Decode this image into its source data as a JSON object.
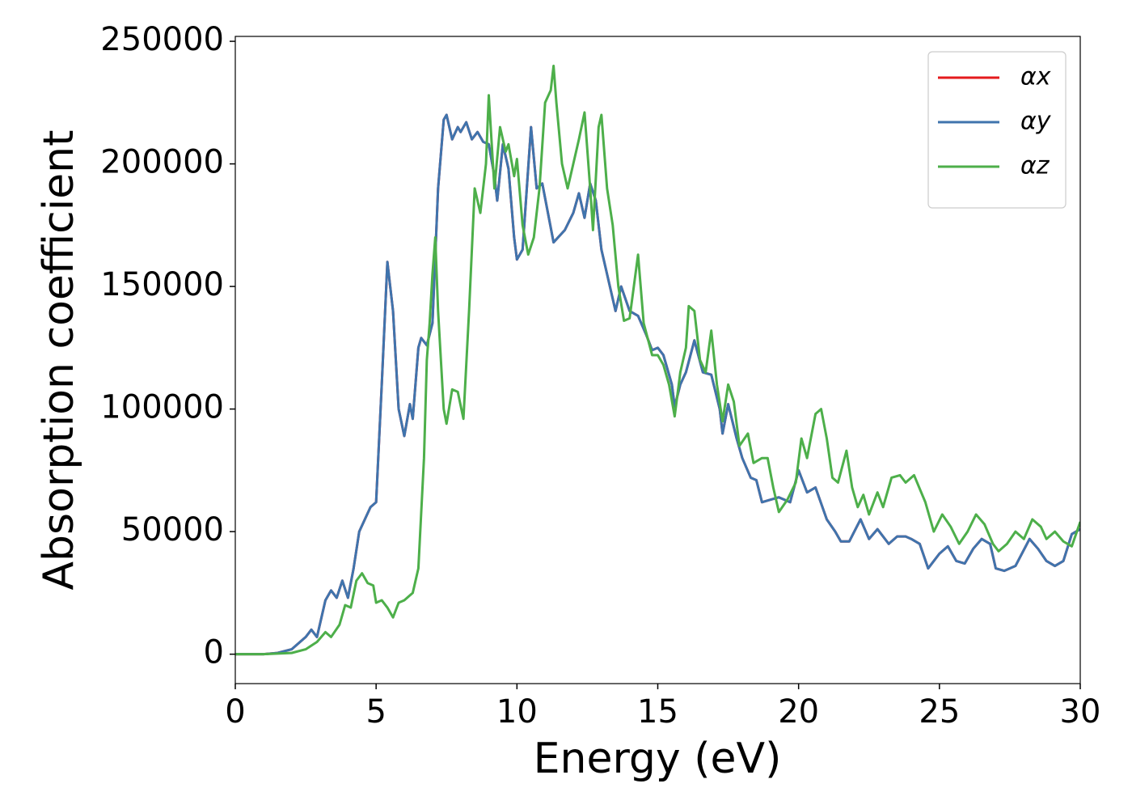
{
  "chart_data": {
    "type": "line",
    "xlabel": "Energy (eV)",
    "ylabel": "Absorption coefficient",
    "xlim": [
      0,
      30
    ],
    "ylim": [
      -12000,
      252000
    ],
    "xticks": [
      0,
      5,
      10,
      15,
      20,
      25,
      30
    ],
    "yticks": [
      0,
      50000,
      100000,
      150000,
      200000,
      250000
    ],
    "grid": false,
    "legend": "upper right",
    "series": [
      {
        "name": "αx",
        "color": "#e41a1c",
        "x": [
          0,
          1,
          1.5,
          2,
          2.5,
          2.7,
          2.9,
          3.2,
          3.4,
          3.6,
          3.8,
          4.0,
          4.2,
          4.4,
          4.8,
          5.0,
          5.2,
          5.4,
          5.6,
          5.8,
          6.0,
          6.2,
          6.3,
          6.5,
          6.6,
          6.8,
          7.0,
          7.2,
          7.4,
          7.5,
          7.7,
          7.9,
          8.0,
          8.2,
          8.4,
          8.6,
          8.8,
          9.0,
          9.2,
          9.3,
          9.5,
          9.7,
          9.9,
          10.0,
          10.2,
          10.5,
          10.7,
          10.9,
          11.1,
          11.3,
          11.7,
          12.0,
          12.2,
          12.4,
          12.6,
          12.8,
          13.0,
          13.2,
          13.5,
          13.7,
          14.0,
          14.3,
          14.6,
          14.8,
          15.0,
          15.2,
          15.5,
          15.6,
          15.8,
          16.0,
          16.3,
          16.6,
          16.9,
          17.2,
          17.3,
          17.5,
          17.8,
          18.0,
          18.3,
          18.5,
          18.7,
          19.0,
          19.3,
          19.7,
          20.0,
          20.3,
          20.6,
          21.0,
          21.3,
          21.5,
          21.8,
          22.2,
          22.5,
          22.8,
          23.2,
          23.5,
          23.8,
          24.0,
          24.3,
          24.6,
          25.0,
          25.3,
          25.6,
          25.9,
          26.2,
          26.5,
          26.8,
          27.0,
          27.3,
          27.7,
          28.2,
          28.5,
          28.8,
          29.1,
          29.4,
          29.7,
          30
        ],
        "values": [
          0,
          0,
          500,
          2000,
          7000,
          10000,
          7000,
          22000,
          26000,
          23000,
          30000,
          23000,
          35000,
          50000,
          60000,
          62000,
          110000,
          160000,
          140000,
          100000,
          89000,
          102000,
          96000,
          125000,
          129000,
          126000,
          135000,
          190000,
          218000,
          220000,
          210000,
          215000,
          213000,
          217000,
          210000,
          213000,
          209000,
          208000,
          195000,
          185000,
          208000,
          198000,
          170000,
          161000,
          165000,
          215000,
          190000,
          192000,
          180000,
          168000,
          173000,
          180000,
          188000,
          178000,
          192000,
          185000,
          165000,
          155000,
          140000,
          150000,
          140000,
          138000,
          130000,
          124000,
          125000,
          122000,
          110000,
          101000,
          110000,
          115000,
          128000,
          115000,
          114000,
          100000,
          90000,
          102000,
          88000,
          80000,
          72000,
          71000,
          62000,
          63000,
          64000,
          62000,
          75000,
          66000,
          68000,
          55000,
          50000,
          46000,
          46000,
          55000,
          47000,
          51000,
          45000,
          48000,
          48000,
          47000,
          45000,
          35000,
          41000,
          44000,
          38000,
          37000,
          43000,
          47000,
          45000,
          35000,
          34000,
          36000,
          47000,
          43000,
          38000,
          36000,
          38000,
          49000,
          51000
        ]
      },
      {
        "name": "αy",
        "color": "#3f74ad",
        "x": [
          0,
          1,
          1.5,
          2,
          2.5,
          2.7,
          2.9,
          3.2,
          3.4,
          3.6,
          3.8,
          4.0,
          4.2,
          4.4,
          4.8,
          5.0,
          5.2,
          5.4,
          5.6,
          5.8,
          6.0,
          6.2,
          6.3,
          6.5,
          6.6,
          6.8,
          7.0,
          7.2,
          7.4,
          7.5,
          7.7,
          7.9,
          8.0,
          8.2,
          8.4,
          8.6,
          8.8,
          9.0,
          9.2,
          9.3,
          9.5,
          9.7,
          9.9,
          10.0,
          10.2,
          10.5,
          10.7,
          10.9,
          11.1,
          11.3,
          11.7,
          12.0,
          12.2,
          12.4,
          12.6,
          12.8,
          13.0,
          13.2,
          13.5,
          13.7,
          14.0,
          14.3,
          14.6,
          14.8,
          15.0,
          15.2,
          15.5,
          15.6,
          15.8,
          16.0,
          16.3,
          16.6,
          16.9,
          17.2,
          17.3,
          17.5,
          17.8,
          18.0,
          18.3,
          18.5,
          18.7,
          19.0,
          19.3,
          19.7,
          20.0,
          20.3,
          20.6,
          21.0,
          21.3,
          21.5,
          21.8,
          22.2,
          22.5,
          22.8,
          23.2,
          23.5,
          23.8,
          24.0,
          24.3,
          24.6,
          25.0,
          25.3,
          25.6,
          25.9,
          26.2,
          26.5,
          26.8,
          27.0,
          27.3,
          27.7,
          28.2,
          28.5,
          28.8,
          29.1,
          29.4,
          29.7,
          30
        ],
        "values": [
          0,
          0,
          500,
          2000,
          7000,
          10000,
          7000,
          22000,
          26000,
          23000,
          30000,
          23000,
          35000,
          50000,
          60000,
          62000,
          110000,
          160000,
          140000,
          100000,
          89000,
          102000,
          96000,
          125000,
          129000,
          126000,
          135000,
          190000,
          218000,
          220000,
          210000,
          215000,
          213000,
          217000,
          210000,
          213000,
          209000,
          208000,
          195000,
          185000,
          208000,
          198000,
          170000,
          161000,
          165000,
          215000,
          190000,
          192000,
          180000,
          168000,
          173000,
          180000,
          188000,
          178000,
          192000,
          185000,
          165000,
          155000,
          140000,
          150000,
          140000,
          138000,
          130000,
          124000,
          125000,
          122000,
          110000,
          101000,
          110000,
          115000,
          128000,
          115000,
          114000,
          100000,
          90000,
          102000,
          88000,
          80000,
          72000,
          71000,
          62000,
          63000,
          64000,
          62000,
          75000,
          66000,
          68000,
          55000,
          50000,
          46000,
          46000,
          55000,
          47000,
          51000,
          45000,
          48000,
          48000,
          47000,
          45000,
          35000,
          41000,
          44000,
          38000,
          37000,
          43000,
          47000,
          45000,
          35000,
          34000,
          36000,
          47000,
          43000,
          38000,
          36000,
          38000,
          49000,
          51000
        ]
      },
      {
        "name": "αz",
        "color": "#4daf4a",
        "x": [
          0,
          1,
          2,
          2.5,
          2.9,
          3.2,
          3.4,
          3.7,
          3.9,
          4.1,
          4.3,
          4.5,
          4.7,
          4.9,
          5.0,
          5.2,
          5.4,
          5.6,
          5.8,
          6.0,
          6.3,
          6.5,
          6.7,
          6.8,
          6.9,
          7.0,
          7.1,
          7.2,
          7.4,
          7.5,
          7.7,
          7.9,
          8.1,
          8.3,
          8.5,
          8.7,
          8.9,
          9.0,
          9.2,
          9.4,
          9.6,
          9.7,
          9.9,
          10.0,
          10.2,
          10.4,
          10.6,
          10.8,
          11.0,
          11.2,
          11.3,
          11.4,
          11.6,
          11.8,
          12.0,
          12.2,
          12.4,
          12.6,
          12.7,
          12.9,
          13.0,
          13.2,
          13.4,
          13.6,
          13.8,
          14.0,
          14.3,
          14.5,
          14.8,
          15.0,
          15.2,
          15.4,
          15.6,
          15.8,
          16.0,
          16.1,
          16.3,
          16.5,
          16.7,
          16.9,
          17.1,
          17.3,
          17.5,
          17.7,
          17.9,
          18.2,
          18.4,
          18.7,
          18.9,
          19.1,
          19.3,
          19.6,
          19.9,
          20.1,
          20.3,
          20.6,
          20.8,
          21.0,
          21.2,
          21.4,
          21.7,
          21.9,
          22.1,
          22.3,
          22.5,
          22.8,
          23.0,
          23.3,
          23.6,
          23.8,
          24.1,
          24.5,
          24.8,
          25.1,
          25.4,
          25.7,
          26.0,
          26.3,
          26.6,
          26.9,
          27.1,
          27.4,
          27.7,
          28.0,
          28.3,
          28.6,
          28.8,
          29.1,
          29.4,
          29.7,
          30.0
        ],
        "values": [
          0,
          0,
          500,
          2000,
          5000,
          9000,
          7000,
          12000,
          20000,
          19000,
          30000,
          33000,
          29000,
          28000,
          21000,
          22000,
          19000,
          15000,
          21000,
          22000,
          25000,
          35000,
          80000,
          120000,
          135000,
          155000,
          170000,
          140000,
          100000,
          94000,
          108000,
          107000,
          96000,
          140000,
          190000,
          180000,
          200000,
          228000,
          190000,
          215000,
          205000,
          208000,
          195000,
          202000,
          175000,
          163000,
          170000,
          190000,
          225000,
          230000,
          240000,
          225000,
          200000,
          190000,
          200000,
          210000,
          221000,
          190000,
          173000,
          215000,
          220000,
          190000,
          175000,
          150000,
          136000,
          137000,
          163000,
          135000,
          122000,
          122000,
          118000,
          110000,
          97000,
          115000,
          125000,
          142000,
          140000,
          120000,
          115000,
          132000,
          110000,
          95000,
          110000,
          103000,
          85000,
          90000,
          78000,
          80000,
          80000,
          68000,
          58000,
          63000,
          70000,
          88000,
          80000,
          98000,
          100000,
          88000,
          72000,
          70000,
          83000,
          68000,
          60000,
          65000,
          57000,
          66000,
          60000,
          72000,
          73000,
          70000,
          73000,
          62000,
          50000,
          57000,
          52000,
          45000,
          50000,
          57000,
          53000,
          45000,
          42000,
          45000,
          50000,
          47000,
          55000,
          52000,
          47000,
          50000,
          46000,
          44000,
          54000
        ]
      }
    ]
  }
}
